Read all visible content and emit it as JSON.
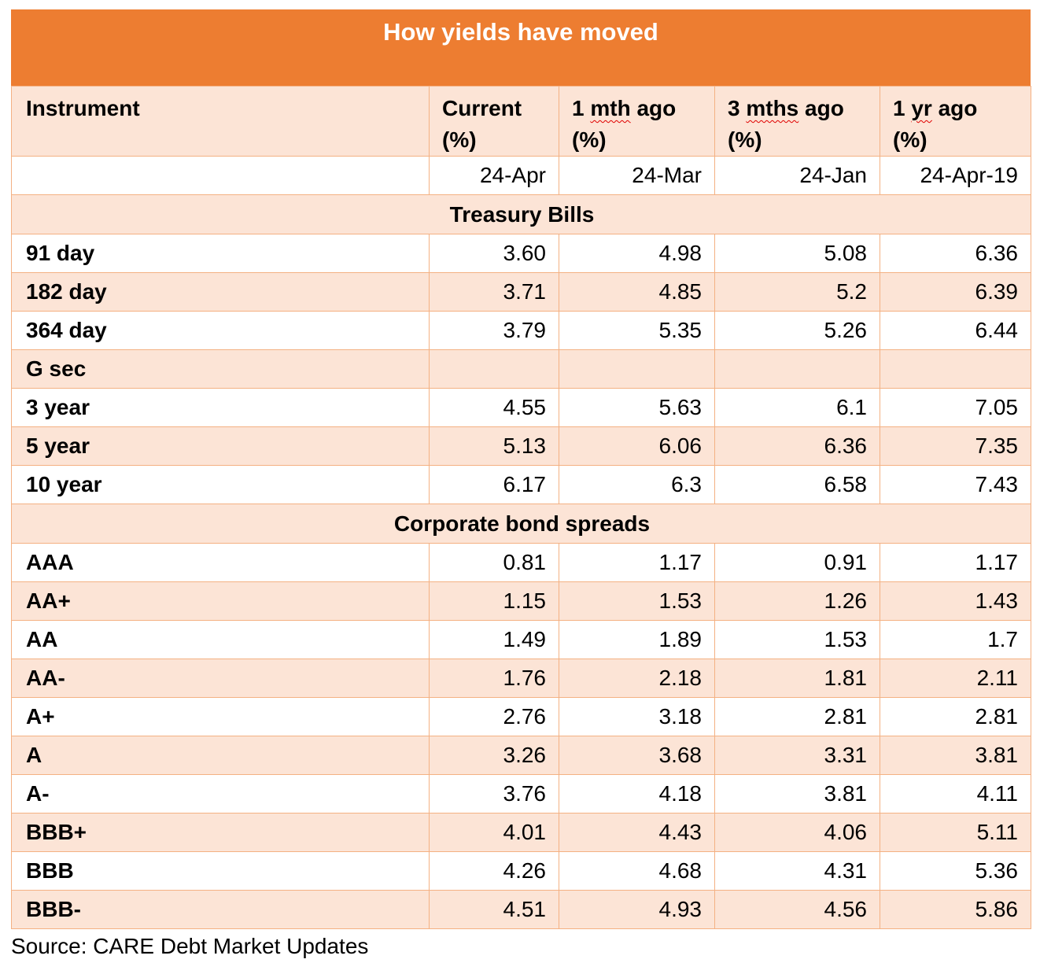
{
  "title": "How yields have moved",
  "columns": [
    {
      "label_a": "Instrument",
      "label_b": "",
      "label_c": ""
    },
    {
      "label_a": "Current",
      "label_b": "",
      "label_c": "(%)"
    },
    {
      "label_a": "1 ",
      "label_b": "mth",
      "label_c": "ago"
    },
    {
      "label_a": "3 ",
      "label_b": "mths",
      "label_c": "ago"
    },
    {
      "label_a": "1 ",
      "label_b": "yr",
      "label_c": "ago"
    }
  ],
  "header_unit": "(%)",
  "dates": [
    "24-Apr",
    "24-Mar",
    "24-Jan",
    "24-Apr-19"
  ],
  "sections": {
    "treasury": "Treasury Bills",
    "corporate": "Corporate bond spreads"
  },
  "treasury_rows": [
    {
      "label": "91 day",
      "values": [
        "3.60",
        "4.98",
        "5.08",
        "6.36"
      ]
    },
    {
      "label": "182 day",
      "values": [
        "3.71",
        "4.85",
        "5.2",
        "6.39"
      ]
    },
    {
      "label": "364 day",
      "values": [
        "3.79",
        "5.35",
        "5.26",
        "6.44"
      ]
    }
  ],
  "gsec_label": "G sec",
  "gsec_rows": [
    {
      "label": "3 year",
      "values": [
        "4.55",
        "5.63",
        "6.1",
        "7.05"
      ]
    },
    {
      "label": "5 year",
      "values": [
        "5.13",
        "6.06",
        "6.36",
        "7.35"
      ]
    },
    {
      "label": "10 year",
      "values": [
        "6.17",
        "6.3",
        "6.58",
        "7.43"
      ]
    }
  ],
  "corporate_rows": [
    {
      "label": "AAA",
      "values": [
        "0.81",
        "1.17",
        "0.91",
        "1.17"
      ]
    },
    {
      "label": "AA+",
      "values": [
        "1.15",
        "1.53",
        "1.26",
        "1.43"
      ]
    },
    {
      "label": "AA",
      "values": [
        "1.49",
        "1.89",
        "1.53",
        "1.7"
      ]
    },
    {
      "label": "AA-",
      "values": [
        "1.76",
        "2.18",
        "1.81",
        "2.11"
      ]
    },
    {
      "label": "A+",
      "values": [
        "2.76",
        "3.18",
        "2.81",
        "2.81"
      ]
    },
    {
      "label": "A",
      "values": [
        "3.26",
        "3.68",
        "3.31",
        "3.81"
      ]
    },
    {
      "label": "A-",
      "values": [
        "3.76",
        "4.18",
        "3.81",
        "4.11"
      ]
    },
    {
      "label": "BBB+",
      "values": [
        "4.01",
        "4.43",
        "4.06",
        "5.11"
      ]
    },
    {
      "label": "BBB",
      "values": [
        "4.26",
        "4.68",
        "4.31",
        "5.36"
      ]
    },
    {
      "label": "BBB-",
      "values": [
        "4.51",
        "4.93",
        "4.56",
        "5.86"
      ]
    }
  ],
  "source": "Source: CARE Debt Market Updates",
  "colors": {
    "title_bg": "#ed7d31",
    "band": "#fce4d6",
    "border": "#f4b183"
  }
}
